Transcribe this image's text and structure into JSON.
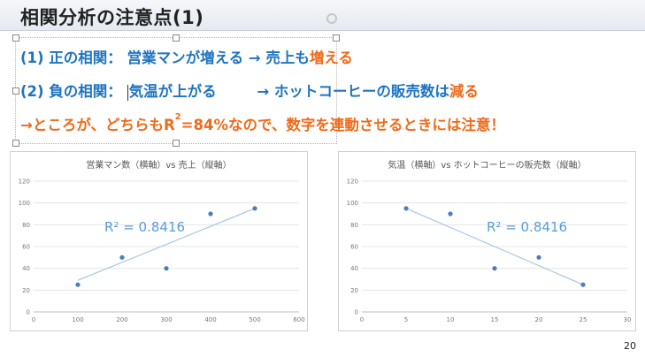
{
  "slide": {
    "title": "相関分析の注意点(1)",
    "page_number": "20"
  },
  "bullets": {
    "line1": {
      "prefix": "(1) 正の相関：",
      "main": "営業マンが増える → 売上も",
      "highlight": "増える"
    },
    "line2": {
      "prefix": "(2) 負の相関：",
      "main1": "気温が上がる",
      "arrow": "→ ホットコーヒーの販売数は",
      "highlight": "減る"
    },
    "line3": {
      "text_a": "→ところが、どちらもR",
      "sup": "2",
      "text_b": "=84%なので、数字を連動させるときには注意！"
    }
  },
  "colors": {
    "blue": "#1f74c0",
    "orange": "#ef6b1b",
    "red": "#e23218",
    "point": "#4a7ebb",
    "trend": "#a8c6e6"
  },
  "chart_data": [
    {
      "type": "scatter",
      "title": "営業マン数（横軸）vs 売上（縦軸）",
      "x": [
        100,
        200,
        300,
        400,
        500
      ],
      "y": [
        25,
        50,
        40,
        90,
        95
      ],
      "xlim": [
        0,
        600
      ],
      "ylim": [
        0,
        120
      ],
      "xticks": [
        "0",
        "100",
        "200",
        "300",
        "400",
        "500",
        "600"
      ],
      "yticks": [
        "0",
        "20",
        "40",
        "60",
        "80",
        "100",
        "120"
      ],
      "trendline": {
        "from": [
          100,
          29
        ],
        "to": [
          500,
          95
        ]
      },
      "annotation": "R² = 0.8416",
      "grid": true
    },
    {
      "type": "scatter",
      "title": "気温（横軸）vs ホットコーヒーの販売数（縦軸）",
      "x": [
        5,
        10,
        15,
        20,
        25
      ],
      "y": [
        95,
        90,
        40,
        50,
        25
      ],
      "xlim": [
        0,
        30
      ],
      "ylim": [
        0,
        120
      ],
      "xticks": [
        "0",
        "5",
        "10",
        "15",
        "20",
        "25",
        "30"
      ],
      "yticks": [
        "0",
        "20",
        "40",
        "60",
        "80",
        "100",
        "120"
      ],
      "trendline": {
        "from": [
          5,
          95
        ],
        "to": [
          25,
          25
        ]
      },
      "annotation": "R² = 0.8416",
      "grid": true
    }
  ]
}
